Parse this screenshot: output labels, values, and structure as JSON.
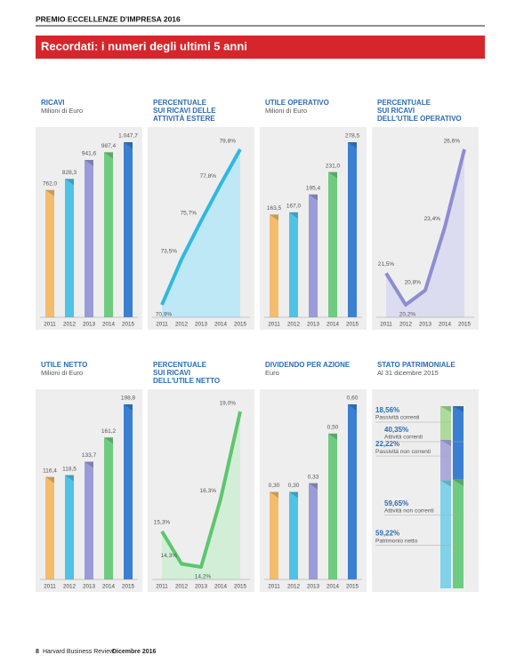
{
  "header": {
    "kicker": "PREMIO ECCELLENZE D'IMPRESA 2016",
    "title": "Recordati: i numeri degli ultimi 5 anni"
  },
  "footer": {
    "page": "8",
    "magazine": "Harvard Business Review",
    "issue": "Dicembre 2016"
  },
  "chart_data": [
    {
      "type": "bar",
      "title": [
        "RICAVI"
      ],
      "subtitle": "Milioni di Euro",
      "categories": [
        "2011",
        "2012",
        "2013",
        "2014",
        "2015"
      ],
      "values": [
        762.0,
        828.3,
        941.6,
        987.4,
        1047.7
      ],
      "value_labels": [
        "762,0",
        "828,3",
        "941,6",
        "987,4",
        "1.047,7"
      ],
      "colors": [
        "#f3bd6e",
        "#4fc3e6",
        "#9a9cd8",
        "#6fcb80",
        "#3a7fd2"
      ]
    },
    {
      "type": "line",
      "title": [
        "PERCENTUALE",
        "SUI RICAVI DELLE",
        "ATTIVITÀ ESTERE"
      ],
      "categories": [
        "2011",
        "2012",
        "2013",
        "2014",
        "2015"
      ],
      "values": [
        70.9,
        73.5,
        75.7,
        77.8,
        79.8
      ],
      "value_labels": [
        "70,9%",
        "73,5%",
        "75,7%",
        "77,8%",
        "79,8%"
      ],
      "color": "#2fb8e3",
      "fill_color": "#bfe8f6"
    },
    {
      "type": "bar",
      "title": [
        "UTILE OPERATIVO"
      ],
      "subtitle": "Milioni di Euro",
      "categories": [
        "2011",
        "2012",
        "2013",
        "2014",
        "2015"
      ],
      "values": [
        163.5,
        167.0,
        195.4,
        231.0,
        278.5
      ],
      "value_labels": [
        "163,5",
        "167,0",
        "195,4",
        "231,0",
        "278,5"
      ],
      "colors": [
        "#f3bd6e",
        "#4fc3e6",
        "#9a9cd8",
        "#6fcb80",
        "#3a7fd2"
      ]
    },
    {
      "type": "line",
      "title": [
        "PERCENTUALE",
        "SUI RICAVI",
        "DELL'UTILE OPERATIVO"
      ],
      "categories": [
        "2011",
        "2012",
        "2013",
        "2014",
        "2015"
      ],
      "values": [
        21.5,
        20.2,
        20.8,
        23.4,
        26.6
      ],
      "value_labels": [
        "21,5%",
        "20,2%",
        "20,8%",
        "23,4%",
        "26,6%"
      ],
      "color": "#8c8dd2",
      "fill_color": "#dcdcf0"
    },
    {
      "type": "bar",
      "title": [
        "UTILE NETTO"
      ],
      "subtitle": "Milioni di Euro",
      "categories": [
        "2011",
        "2012",
        "2013",
        "2014",
        "2015"
      ],
      "values": [
        116.4,
        118.5,
        133.7,
        161.2,
        198.8
      ],
      "value_labels": [
        "116,4",
        "118,5",
        "133,7",
        "161,2",
        "198,8"
      ],
      "colors": [
        "#f3bd6e",
        "#4fc3e6",
        "#9a9cd8",
        "#6fcb80",
        "#3a7fd2"
      ]
    },
    {
      "type": "line",
      "title": [
        "PERCENTUALE",
        "SUI RICAVI",
        "DELL'UTILE NETTO"
      ],
      "categories": [
        "2011",
        "2012",
        "2013",
        "2014",
        "2015"
      ],
      "values": [
        15.3,
        14.3,
        14.2,
        16.3,
        19.0
      ],
      "value_labels": [
        "15,3%",
        "14,3%",
        "14,2%",
        "16,3%",
        "19,0%"
      ],
      "color": "#5cc66e",
      "fill_color": "#d3eed6"
    },
    {
      "type": "bar",
      "title": [
        "DIVIDENDO PER AZIONE"
      ],
      "subtitle": "Euro",
      "categories": [
        "2011",
        "2012",
        "2013",
        "2014",
        "2015"
      ],
      "values": [
        0.3,
        0.3,
        0.33,
        0.5,
        0.6
      ],
      "value_labels": [
        "0,30",
        "0,30",
        "0,33",
        "0,50",
        "0,60"
      ],
      "colors": [
        "#f3bd6e",
        "#4fc3e6",
        "#9a9cd8",
        "#6fcb80",
        "#3a7fd2"
      ]
    },
    {
      "type": "stacked_bar",
      "title": [
        "STATO PATRIMONIALE"
      ],
      "subtitle": "Al 31 dicembre 2015",
      "columns": [
        {
          "segments": [
            {
              "name": "Passività correnti",
              "value": 18.56,
              "value_label": "18,56%",
              "color": "#acdc9c"
            },
            {
              "name": "Passività non correnti",
              "value": 22.22,
              "value_label": "22,22%",
              "color": "#abaadd"
            },
            {
              "name": "Patrimonio netto",
              "value": 59.22,
              "value_label": "59,22%",
              "color": "#7fd2ea"
            }
          ]
        },
        {
          "segments": [
            {
              "name": "Attività correnti",
              "value": 40.35,
              "value_label": "40,35%",
              "color": "#3a7fd2"
            },
            {
              "name": "Attività non correnti",
              "value": 59.65,
              "value_label": "59,65%",
              "color": "#6fcb80"
            }
          ]
        }
      ]
    }
  ]
}
